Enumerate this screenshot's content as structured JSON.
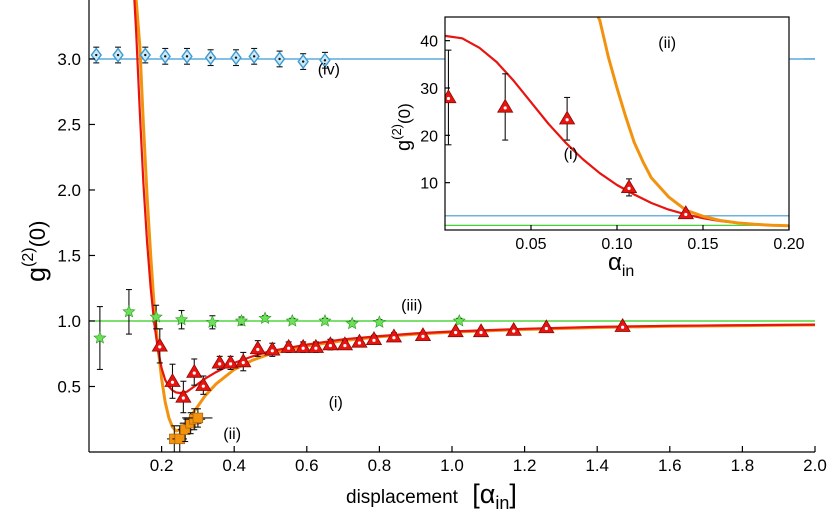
{
  "chart_data": [
    {
      "type": "line",
      "xlabel": "displacement",
      "xlabel_unit": "[α",
      "xlabel_unit_sub": "in",
      "xlabel_unit_close": "]",
      "ylabel": "g",
      "ylabel_sup": "(2)",
      "ylabel_tail": "(0)",
      "xlim": [
        0.0,
        2.0
      ],
      "ylim": [
        0.0,
        3.45
      ],
      "x_ticks": [
        "0.2",
        "0.4",
        "0.6",
        "0.8",
        "1.0",
        "1.2",
        "1.4",
        "1.6",
        "1.8",
        "2.0"
      ],
      "x_tick_values": [
        0.2,
        0.4,
        0.6,
        0.8,
        1.0,
        1.2,
        1.4,
        1.6,
        1.8,
        2.0
      ],
      "y_ticks": [
        "0.5",
        "1.0",
        "1.5",
        "2.0",
        "2.5",
        "3.0"
      ],
      "y_tick_values": [
        0.5,
        1.0,
        1.5,
        2.0,
        2.5,
        3.0
      ],
      "grid": false,
      "curve_labels": [
        {
          "text": "(i)",
          "x": 0.66,
          "y": 0.34
        },
        {
          "text": "(ii)",
          "x": 0.37,
          "y": 0.1
        },
        {
          "text": "(iii)",
          "x": 0.86,
          "y": 1.08
        },
        {
          "text": "(iv)",
          "x": 0.63,
          "y": 2.88
        }
      ],
      "series": [
        {
          "id": "iv-line",
          "color": "#3b9bd2",
          "kind": "line",
          "x": [
            0.0,
            2.0
          ],
          "y": [
            3.0,
            3.0
          ]
        },
        {
          "id": "iii-line",
          "color": "#2ecc1a",
          "kind": "line",
          "x": [
            0.0,
            2.0
          ],
          "y": [
            1.0,
            1.0
          ]
        },
        {
          "id": "ii-curve",
          "color": "#f2920f",
          "kind": "line",
          "x": [
            0.13,
            0.14,
            0.15,
            0.16,
            0.17,
            0.18,
            0.19,
            0.2,
            0.21,
            0.22,
            0.23,
            0.24,
            0.25,
            0.26,
            0.27,
            0.28,
            0.3,
            0.32,
            0.35,
            0.4,
            0.45,
            0.5,
            0.6,
            0.7,
            0.8,
            0.9,
            1.0,
            1.2,
            1.4,
            1.6,
            1.8,
            2.0
          ],
          "y": [
            3.45,
            3.1,
            2.5,
            1.95,
            1.5,
            1.1,
            0.8,
            0.56,
            0.38,
            0.26,
            0.19,
            0.16,
            0.17,
            0.2,
            0.23,
            0.27,
            0.35,
            0.43,
            0.52,
            0.63,
            0.7,
            0.75,
            0.81,
            0.85,
            0.88,
            0.9,
            0.915,
            0.935,
            0.95,
            0.96,
            0.965,
            0.97
          ]
        },
        {
          "id": "i-curve",
          "color": "#e8140f",
          "kind": "line",
          "x": [
            0.125,
            0.13,
            0.14,
            0.15,
            0.16,
            0.17,
            0.18,
            0.19,
            0.2,
            0.21,
            0.22,
            0.23,
            0.24,
            0.25,
            0.26,
            0.27,
            0.28,
            0.3,
            0.32,
            0.35,
            0.4,
            0.45,
            0.5,
            0.6,
            0.7,
            0.8,
            0.9,
            1.0,
            1.2,
            1.4,
            1.6,
            1.8,
            2.0
          ],
          "y": [
            3.45,
            3.2,
            2.6,
            2.05,
            1.6,
            1.25,
            0.98,
            0.78,
            0.64,
            0.55,
            0.5,
            0.47,
            0.455,
            0.45,
            0.455,
            0.46,
            0.48,
            0.52,
            0.56,
            0.61,
            0.68,
            0.73,
            0.77,
            0.82,
            0.86,
            0.885,
            0.905,
            0.92,
            0.94,
            0.955,
            0.963,
            0.968,
            0.972
          ]
        },
        {
          "id": "iv-points",
          "color": "#3b9bd2",
          "kind": "points",
          "marker": "diamond",
          "x": [
            0.02,
            0.08,
            0.155,
            0.21,
            0.27,
            0.335,
            0.405,
            0.455,
            0.525,
            0.59,
            0.65
          ],
          "y": [
            3.03,
            3.03,
            3.03,
            3.02,
            3.02,
            3.01,
            3.01,
            3.02,
            3.0,
            2.98,
            2.99
          ],
          "yerr": [
            0.06,
            0.06,
            0.06,
            0.06,
            0.06,
            0.06,
            0.06,
            0.06,
            0.06,
            0.06,
            0.06
          ]
        },
        {
          "id": "iii-points",
          "color": "#6ce05a",
          "kind": "points",
          "marker": "star",
          "x": [
            0.03,
            0.11,
            0.185,
            0.255,
            0.34,
            0.42,
            0.485,
            0.56,
            0.65,
            0.725,
            0.8,
            1.02
          ],
          "y": [
            0.87,
            1.07,
            1.03,
            1.01,
            0.99,
            1.0,
            1.02,
            1.0,
            1.0,
            0.98,
            0.99,
            1.0
          ],
          "yerr": [
            0.24,
            0.17,
            0.09,
            0.07,
            0.05,
            0.03,
            0.02,
            0.02,
            0.02,
            0.02,
            0.02,
            0.02
          ]
        },
        {
          "id": "i-points",
          "color": "#e8140f",
          "kind": "points",
          "marker": "triangle",
          "x": [
            0.195,
            0.23,
            0.26,
            0.29,
            0.315,
            0.36,
            0.39,
            0.425,
            0.465,
            0.505,
            0.55,
            0.59,
            0.625,
            0.665,
            0.705,
            0.745,
            0.785,
            0.84,
            0.92,
            1.01,
            1.08,
            1.17,
            1.26,
            1.47
          ],
          "y": [
            0.81,
            0.54,
            0.42,
            0.61,
            0.51,
            0.68,
            0.68,
            0.69,
            0.79,
            0.78,
            0.8,
            0.8,
            0.8,
            0.82,
            0.82,
            0.84,
            0.86,
            0.88,
            0.89,
            0.92,
            0.92,
            0.93,
            0.95,
            0.96
          ],
          "yerr": [
            0.13,
            0.13,
            0.12,
            0.1,
            0.07,
            0.05,
            0.05,
            0.07,
            0.06,
            0.05,
            0.04,
            0.04,
            0.04,
            0.04,
            0.03,
            0.03,
            0.03,
            0.03,
            0.02,
            0.02,
            0.02,
            0.02,
            0.02,
            0.02
          ]
        },
        {
          "id": "ii-points",
          "color": "#f2920f",
          "kind": "points",
          "marker": "square",
          "x": [
            0.235,
            0.25,
            0.265,
            0.28,
            0.29,
            0.3
          ],
          "y": [
            0.1,
            0.1,
            0.17,
            0.22,
            0.25,
            0.26
          ],
          "yerr": [
            0.1,
            0.1,
            0.09,
            0.08,
            0.08,
            0.07
          ],
          "xerr": [
            0.02,
            0.02,
            0.02,
            0.03,
            0.03,
            0.04
          ]
        }
      ]
    },
    {
      "type": "line",
      "xlabel": "α",
      "xlabel_sub": "in",
      "ylabel": "g",
      "ylabel_sup": "(2)",
      "ylabel_tail": "(0)",
      "xlim": [
        0.0,
        0.2
      ],
      "ylim": [
        0,
        45
      ],
      "x_ticks": [
        "0.05",
        "0.10",
        "0.15",
        "0.20"
      ],
      "x_tick_values": [
        0.05,
        0.1,
        0.15,
        0.2
      ],
      "y_ticks": [
        "10",
        "20",
        "30",
        "40"
      ],
      "y_tick_values": [
        10,
        20,
        30,
        40
      ],
      "grid": false,
      "curve_labels": [
        {
          "text": "(i)",
          "x": 0.069,
          "y": 15
        },
        {
          "text": "(ii)",
          "x": 0.124,
          "y": 38.5
        }
      ],
      "series": [
        {
          "id": "inset-iv-line",
          "color": "#3b9bd2",
          "kind": "line",
          "x": [
            0.0,
            0.2
          ],
          "y": [
            3.0,
            3.0
          ]
        },
        {
          "id": "inset-iii-line",
          "color": "#2ecc1a",
          "kind": "line",
          "x": [
            0.0,
            0.2
          ],
          "y": [
            1.0,
            1.0
          ]
        },
        {
          "id": "inset-i-curve",
          "color": "#e8140f",
          "kind": "line",
          "x": [
            0.0,
            0.01,
            0.02,
            0.03,
            0.04,
            0.05,
            0.06,
            0.07,
            0.08,
            0.09,
            0.1,
            0.11,
            0.12,
            0.13,
            0.14,
            0.15,
            0.16,
            0.17,
            0.18,
            0.19,
            0.2
          ],
          "y": [
            41,
            40.5,
            38.5,
            35.5,
            31.5,
            27,
            22.5,
            18.5,
            15,
            12,
            9.5,
            7.5,
            5.7,
            4.3,
            3.3,
            2.5,
            1.9,
            1.5,
            1.2,
            1.0,
            0.9
          ]
        },
        {
          "id": "inset-ii-curve",
          "color": "#f2920f",
          "kind": "line",
          "x": [
            0.089,
            0.09,
            0.095,
            0.1,
            0.105,
            0.11,
            0.115,
            0.12,
            0.13,
            0.14,
            0.15,
            0.16,
            0.17,
            0.18,
            0.19,
            0.2
          ],
          "y": [
            45,
            44.3,
            36.5,
            30,
            24,
            18.5,
            14.5,
            11,
            7,
            4.2,
            2.9,
            2.0,
            1.5,
            1.2,
            1.0,
            0.9
          ]
        },
        {
          "id": "inset-i-points",
          "color": "#e8140f",
          "kind": "points",
          "marker": "triangle",
          "x": [
            0.002,
            0.035,
            0.071,
            0.107,
            0.14
          ],
          "y": [
            28,
            26,
            23.5,
            9,
            3.5
          ],
          "yerr": [
            10,
            7,
            4.5,
            1.8,
            0.6
          ]
        }
      ]
    }
  ]
}
